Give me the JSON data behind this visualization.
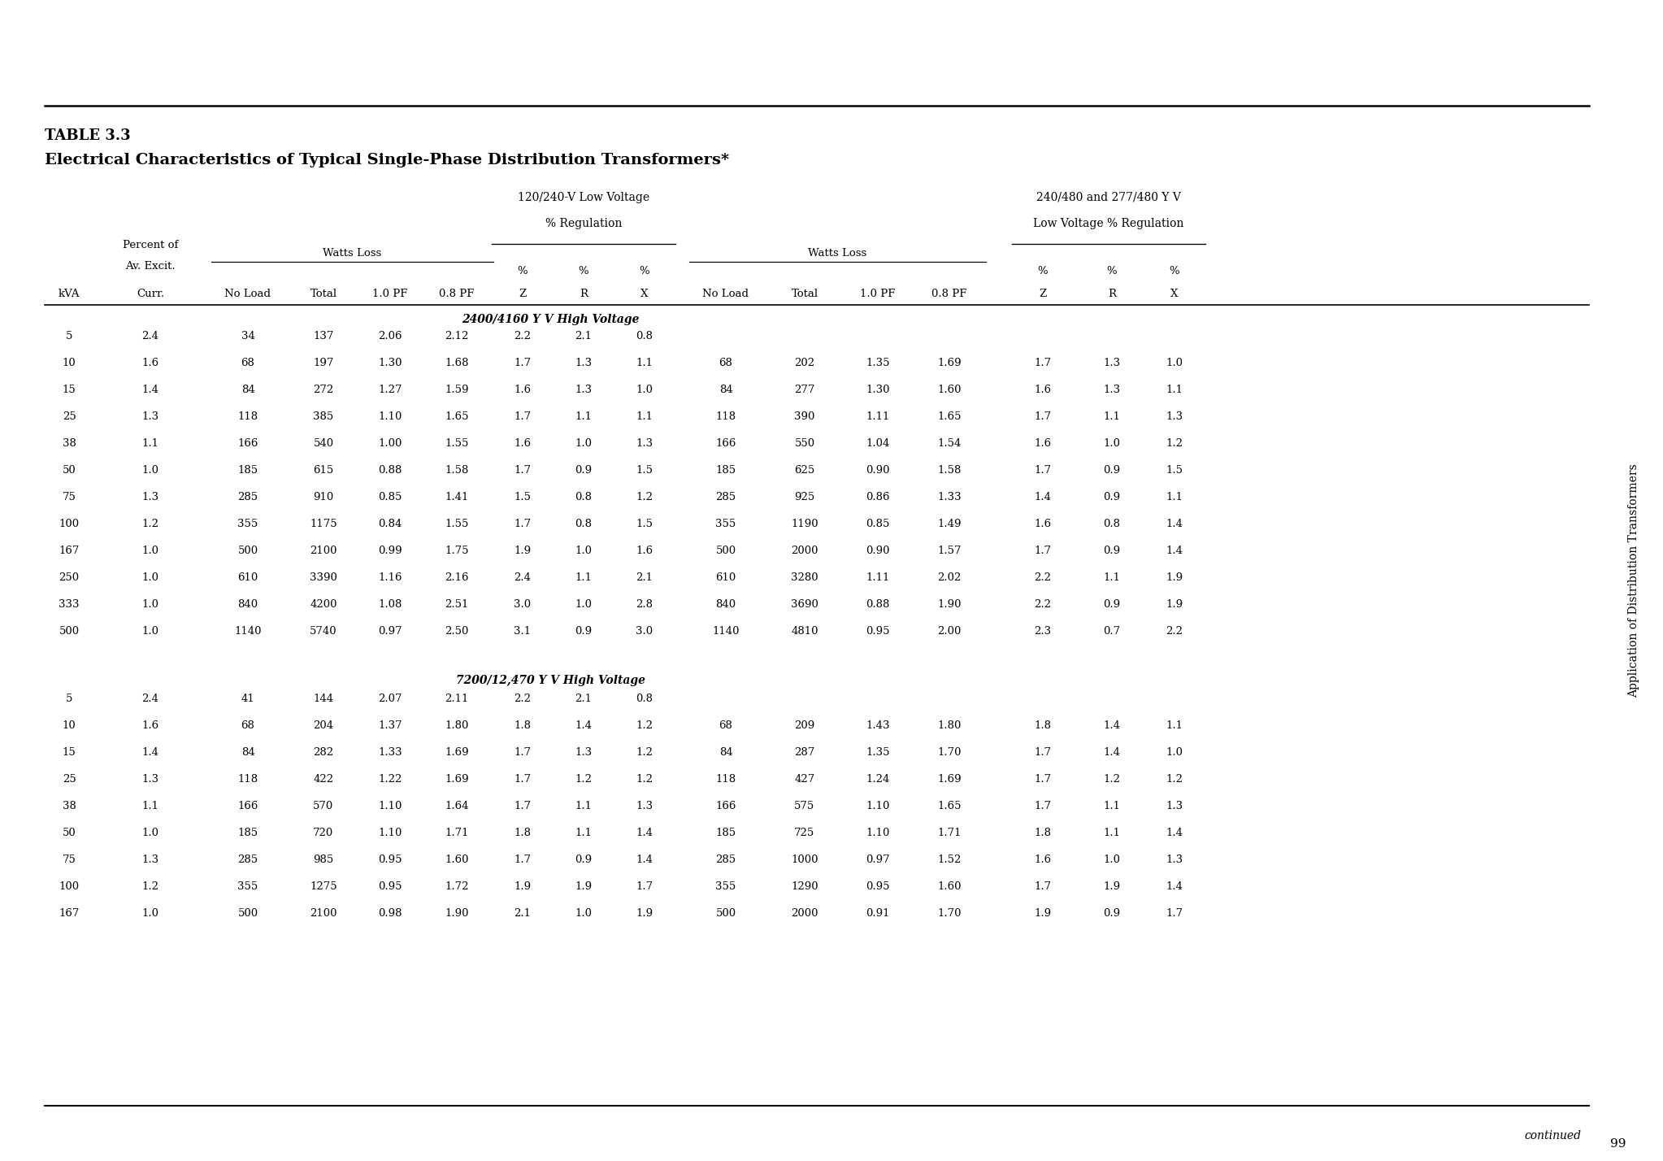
{
  "title_line1": "TABLE 3.3",
  "title_line2": "Electrical Characteristics of Typical Single-Phase Distribution Transformers*",
  "side_text": "Application of Distribution Transformers",
  "page_number": "99",
  "continued_text": "continued",
  "col_group1_header1": "120/240-V Low Voltage",
  "col_group1_header2": "% Regulation",
  "col_group2_header1": "240/480 and 277/480 Y V",
  "col_group2_header2": "Low Voltage % Regulation",
  "watts_loss_label": "Watts Loss",
  "section1_header": "2400/4160 Y V High Voltage",
  "section2_header": "7200/12,470 Y V High Voltage",
  "section1_rows": [
    [
      "5",
      "2.4",
      "34",
      "137",
      "2.06",
      "2.12",
      "2.2",
      "2.1",
      "0.8",
      "",
      "",
      "",
      "",
      "",
      "",
      ""
    ],
    [
      "10",
      "1.6",
      "68",
      "197",
      "1.30",
      "1.68",
      "1.7",
      "1.3",
      "1.1",
      "68",
      "202",
      "1.35",
      "1.69",
      "1.7",
      "1.3",
      "1.0"
    ],
    [
      "15",
      "1.4",
      "84",
      "272",
      "1.27",
      "1.59",
      "1.6",
      "1.3",
      "1.0",
      "84",
      "277",
      "1.30",
      "1.60",
      "1.6",
      "1.3",
      "1.1"
    ],
    [
      "25",
      "1.3",
      "118",
      "385",
      "1.10",
      "1.65",
      "1.7",
      "1.1",
      "1.1",
      "118",
      "390",
      "1.11",
      "1.65",
      "1.7",
      "1.1",
      "1.3"
    ],
    [
      "38",
      "1.1",
      "166",
      "540",
      "1.00",
      "1.55",
      "1.6",
      "1.0",
      "1.3",
      "166",
      "550",
      "1.04",
      "1.54",
      "1.6",
      "1.0",
      "1.2"
    ],
    [
      "50",
      "1.0",
      "185",
      "615",
      "0.88",
      "1.58",
      "1.7",
      "0.9",
      "1.5",
      "185",
      "625",
      "0.90",
      "1.58",
      "1.7",
      "0.9",
      "1.5"
    ],
    [
      "75",
      "1.3",
      "285",
      "910",
      "0.85",
      "1.41",
      "1.5",
      "0.8",
      "1.2",
      "285",
      "925",
      "0.86",
      "1.33",
      "1.4",
      "0.9",
      "1.1"
    ],
    [
      "100",
      "1.2",
      "355",
      "1175",
      "0.84",
      "1.55",
      "1.7",
      "0.8",
      "1.5",
      "355",
      "1190",
      "0.85",
      "1.49",
      "1.6",
      "0.8",
      "1.4"
    ],
    [
      "167",
      "1.0",
      "500",
      "2100",
      "0.99",
      "1.75",
      "1.9",
      "1.0",
      "1.6",
      "500",
      "2000",
      "0.90",
      "1.57",
      "1.7",
      "0.9",
      "1.4"
    ],
    [
      "250",
      "1.0",
      "610",
      "3390",
      "1.16",
      "2.16",
      "2.4",
      "1.1",
      "2.1",
      "610",
      "3280",
      "1.11",
      "2.02",
      "2.2",
      "1.1",
      "1.9"
    ],
    [
      "333",
      "1.0",
      "840",
      "4200",
      "1.08",
      "2.51",
      "3.0",
      "1.0",
      "2.8",
      "840",
      "3690",
      "0.88",
      "1.90",
      "2.2",
      "0.9",
      "1.9"
    ],
    [
      "500",
      "1.0",
      "1140",
      "5740",
      "0.97",
      "2.50",
      "3.1",
      "0.9",
      "3.0",
      "1140",
      "4810",
      "0.95",
      "2.00",
      "2.3",
      "0.7",
      "2.2"
    ]
  ],
  "section2_rows": [
    [
      "5",
      "2.4",
      "41",
      "144",
      "2.07",
      "2.11",
      "2.2",
      "2.1",
      "0.8",
      "",
      "",
      "",
      "",
      "",
      "",
      ""
    ],
    [
      "10",
      "1.6",
      "68",
      "204",
      "1.37",
      "1.80",
      "1.8",
      "1.4",
      "1.2",
      "68",
      "209",
      "1.43",
      "1.80",
      "1.8",
      "1.4",
      "1.1"
    ],
    [
      "15",
      "1.4",
      "84",
      "282",
      "1.33",
      "1.69",
      "1.7",
      "1.3",
      "1.2",
      "84",
      "287",
      "1.35",
      "1.70",
      "1.7",
      "1.4",
      "1.0"
    ],
    [
      "25",
      "1.3",
      "118",
      "422",
      "1.22",
      "1.69",
      "1.7",
      "1.2",
      "1.2",
      "118",
      "427",
      "1.24",
      "1.69",
      "1.7",
      "1.2",
      "1.2"
    ],
    [
      "38",
      "1.1",
      "166",
      "570",
      "1.10",
      "1.64",
      "1.7",
      "1.1",
      "1.3",
      "166",
      "575",
      "1.10",
      "1.65",
      "1.7",
      "1.1",
      "1.3"
    ],
    [
      "50",
      "1.0",
      "185",
      "720",
      "1.10",
      "1.71",
      "1.8",
      "1.1",
      "1.4",
      "185",
      "725",
      "1.10",
      "1.71",
      "1.8",
      "1.1",
      "1.4"
    ],
    [
      "75",
      "1.3",
      "285",
      "985",
      "0.95",
      "1.60",
      "1.7",
      "0.9",
      "1.4",
      "285",
      "1000",
      "0.97",
      "1.52",
      "1.6",
      "1.0",
      "1.3"
    ],
    [
      "100",
      "1.2",
      "355",
      "1275",
      "0.95",
      "1.72",
      "1.9",
      "1.9",
      "1.7",
      "355",
      "1290",
      "0.95",
      "1.60",
      "1.7",
      "1.9",
      "1.4"
    ],
    [
      "167",
      "1.0",
      "500",
      "2100",
      "0.98",
      "1.90",
      "2.1",
      "1.0",
      "1.9",
      "500",
      "2000",
      "0.91",
      "1.70",
      "1.9",
      "0.9",
      "1.7"
    ]
  ],
  "bg_color": "#ffffff",
  "text_color": "#000000",
  "line_color": "#000000"
}
